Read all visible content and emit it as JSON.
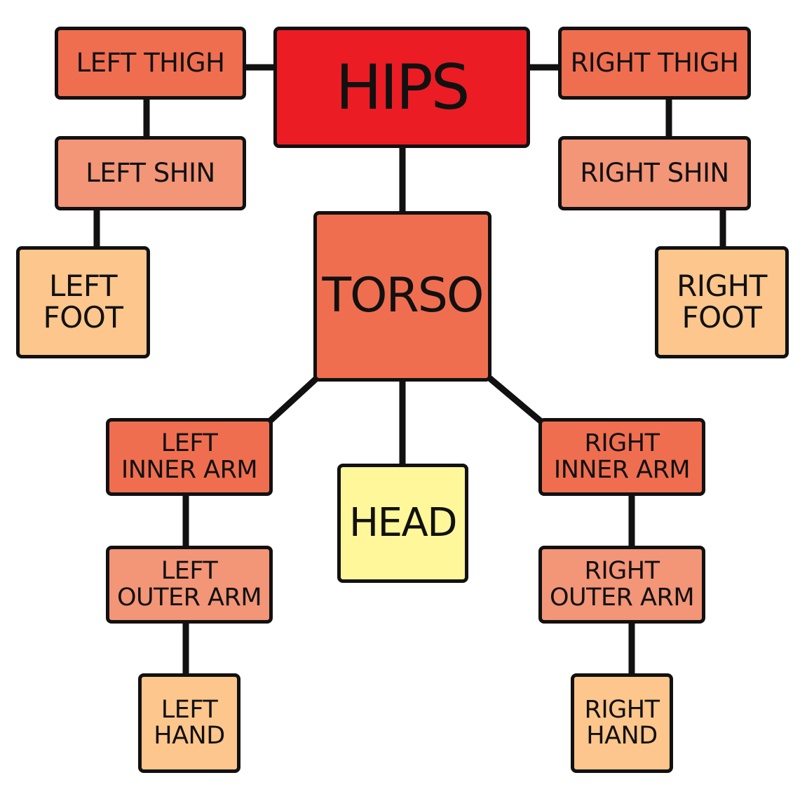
{
  "colors": {
    "hips": "#ec1c24",
    "level1": "#f06e50",
    "level2": "#f39577",
    "level3": "#fcc68c",
    "head": "#fff799",
    "connector": "#111111"
  },
  "nodes": {
    "hips": [
      "HIPS"
    ],
    "torso": [
      "TORSO"
    ],
    "head": [
      "HEAD"
    ],
    "left_thigh": [
      "LEFT THIGH"
    ],
    "left_shin": [
      "LEFT SHIN"
    ],
    "left_foot": [
      "LEFT",
      "FOOT"
    ],
    "right_thigh": [
      "RIGHT THIGH"
    ],
    "right_shin": [
      "RIGHT SHIN"
    ],
    "right_foot": [
      "RIGHT",
      "FOOT"
    ],
    "left_inner_arm": [
      "LEFT",
      "INNER ARM"
    ],
    "left_outer_arm": [
      "LEFT",
      "OUTER ARM"
    ],
    "left_hand": [
      "LEFT",
      "HAND"
    ],
    "right_inner_arm": [
      "RIGHT",
      "INNER ARM"
    ],
    "right_outer_arm": [
      "RIGHT",
      "OUTER ARM"
    ],
    "right_hand": [
      "RIGHT",
      "HAND"
    ]
  },
  "edges": [
    [
      "hips",
      "left_thigh"
    ],
    [
      "hips",
      "right_thigh"
    ],
    [
      "hips",
      "torso"
    ],
    [
      "left_thigh",
      "left_shin"
    ],
    [
      "left_shin",
      "left_foot"
    ],
    [
      "right_thigh",
      "right_shin"
    ],
    [
      "right_shin",
      "right_foot"
    ],
    [
      "torso",
      "head"
    ],
    [
      "torso",
      "left_inner_arm"
    ],
    [
      "torso",
      "right_inner_arm"
    ],
    [
      "left_inner_arm",
      "left_outer_arm"
    ],
    [
      "left_outer_arm",
      "left_hand"
    ],
    [
      "right_inner_arm",
      "right_outer_arm"
    ],
    [
      "right_outer_arm",
      "right_hand"
    ]
  ]
}
